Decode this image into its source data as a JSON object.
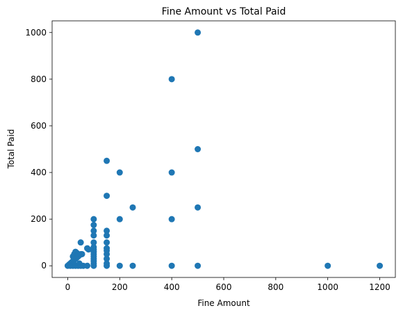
{
  "chart_data": {
    "type": "scatter",
    "title": "Fine Amount vs Total Paid",
    "xlabel": "Fine Amount",
    "ylabel": "Total Paid",
    "xlim": [
      -60,
      1260
    ],
    "ylim": [
      -50,
      1050
    ],
    "xticks": [
      0,
      200,
      400,
      600,
      800,
      1000,
      1200
    ],
    "yticks": [
      0,
      200,
      400,
      600,
      800,
      1000
    ],
    "grid": false,
    "marker_color": "#1f77b4",
    "series": [
      {
        "points": [
          [
            0,
            0
          ],
          [
            5,
            5
          ],
          [
            10,
            0
          ],
          [
            10,
            10
          ],
          [
            15,
            15
          ],
          [
            20,
            0
          ],
          [
            20,
            20
          ],
          [
            25,
            5
          ],
          [
            25,
            25
          ],
          [
            30,
            0
          ],
          [
            30,
            30
          ],
          [
            35,
            35
          ],
          [
            40,
            0
          ],
          [
            40,
            40
          ],
          [
            45,
            45
          ],
          [
            20,
            40
          ],
          [
            25,
            50
          ],
          [
            30,
            60
          ],
          [
            35,
            55
          ],
          [
            40,
            50
          ],
          [
            45,
            10
          ],
          [
            50,
            0
          ],
          [
            50,
            50
          ],
          [
            50,
            100
          ],
          [
            55,
            50
          ],
          [
            60,
            0
          ],
          [
            75,
            0
          ],
          [
            75,
            75
          ],
          [
            80,
            70
          ],
          [
            100,
            0
          ],
          [
            100,
            10
          ],
          [
            100,
            20
          ],
          [
            100,
            30
          ],
          [
            100,
            40
          ],
          [
            100,
            50
          ],
          [
            100,
            60
          ],
          [
            100,
            70
          ],
          [
            100,
            80
          ],
          [
            100,
            100
          ],
          [
            100,
            130
          ],
          [
            100,
            150
          ],
          [
            100,
            175
          ],
          [
            100,
            200
          ],
          [
            150,
            0
          ],
          [
            150,
            10
          ],
          [
            150,
            30
          ],
          [
            150,
            50
          ],
          [
            150,
            65
          ],
          [
            150,
            75
          ],
          [
            150,
            100
          ],
          [
            150,
            130
          ],
          [
            150,
            150
          ],
          [
            150,
            300
          ],
          [
            150,
            450
          ],
          [
            200,
            0
          ],
          [
            200,
            200
          ],
          [
            200,
            400
          ],
          [
            250,
            0
          ],
          [
            250,
            250
          ],
          [
            400,
            0
          ],
          [
            400,
            200
          ],
          [
            400,
            400
          ],
          [
            400,
            800
          ],
          [
            500,
            0
          ],
          [
            500,
            250
          ],
          [
            500,
            500
          ],
          [
            500,
            1000
          ],
          [
            1000,
            0
          ],
          [
            1200,
            0
          ]
        ]
      }
    ]
  }
}
